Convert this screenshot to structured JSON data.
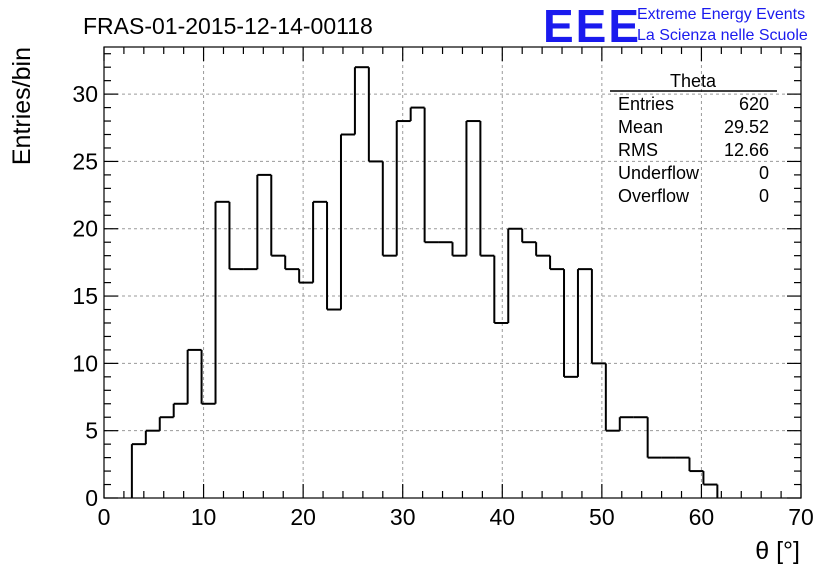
{
  "header": {
    "run_title": "FRAS-01-2015-12-14-00118",
    "logo_text": "EEE",
    "logo_line1": "Extreme Energy Events",
    "logo_line2": "La Scienza nelle Scuole",
    "logo_color": "#1a1aee"
  },
  "stats_box": {
    "title": "Theta",
    "rows": [
      {
        "label": "Entries",
        "value": "620"
      },
      {
        "label": "Mean",
        "value": "29.52"
      },
      {
        "label": "RMS",
        "value": "12.66"
      },
      {
        "label": "Underflow",
        "value": "0"
      },
      {
        "label": "Overflow",
        "value": "0"
      }
    ]
  },
  "chart_data": {
    "type": "bar",
    "histogram": true,
    "xlabel": "θ [°]",
    "ylabel": "Entries/bin",
    "xlim": [
      0,
      70
    ],
    "ylim": [
      0,
      33.5
    ],
    "x_ticks": [
      0,
      10,
      20,
      30,
      40,
      50,
      60,
      70
    ],
    "y_ticks": [
      0,
      5,
      10,
      15,
      20,
      25,
      30
    ],
    "grid": true,
    "bin_width": 1.4,
    "bin_start": 2.8,
    "values": [
      4,
      5,
      6,
      7,
      11,
      7,
      22,
      17,
      17,
      24,
      18,
      17,
      16,
      22,
      14,
      27,
      32,
      25,
      18,
      28,
      29,
      19,
      19,
      18,
      28,
      18,
      13,
      20,
      19,
      18,
      17,
      9,
      17,
      10,
      5,
      6,
      6,
      3,
      3,
      3,
      2,
      1
    ]
  }
}
